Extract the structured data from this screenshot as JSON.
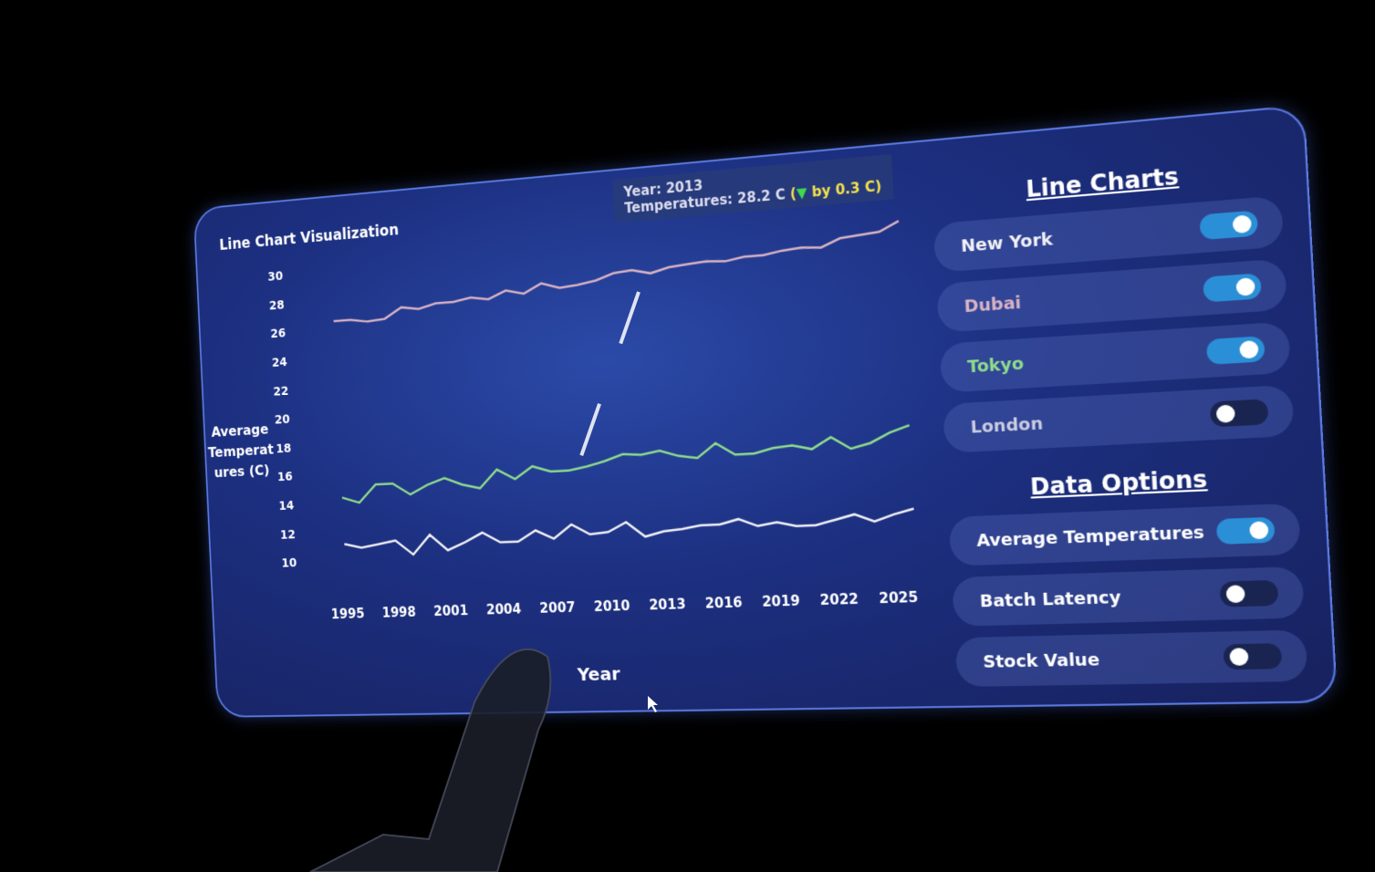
{
  "chart_data": {
    "type": "line",
    "title": "Line Chart Visualization",
    "x_label": "Year",
    "y_label": [
      "Average",
      "Temperat",
      "ures (C)"
    ],
    "x": [
      1995,
      1996,
      1997,
      1998,
      1999,
      2000,
      2001,
      2002,
      2003,
      2004,
      2005,
      2006,
      2007,
      2008,
      2009,
      2010,
      2011,
      2012,
      2013,
      2014,
      2015,
      2016,
      2017,
      2018,
      2019,
      2020,
      2021,
      2022,
      2023,
      2024,
      2025,
      2026
    ],
    "xlim": [
      1994,
      2027
    ],
    "xticks": [
      1995,
      1998,
      2001,
      2004,
      2007,
      2010,
      2013,
      2016,
      2019,
      2022,
      2025
    ],
    "ylim": [
      9,
      31
    ],
    "yticks": [
      10,
      12,
      14,
      16,
      18,
      20,
      22,
      24,
      26,
      28,
      30
    ],
    "grid": false,
    "series": [
      {
        "name": "New York",
        "color": "#f2f2f5",
        "on": true,
        "values": [
          11.2,
          10.9,
          11.1,
          11.3,
          10.3,
          11.6,
          10.5,
          11.0,
          11.6,
          10.9,
          10.9,
          11.6,
          11.0,
          11.9,
          11.2,
          11.3,
          11.9,
          10.9,
          11.2,
          11.3,
          11.5,
          11.5,
          11.8,
          11.3,
          11.5,
          11.2,
          11.2,
          11.5,
          11.8,
          11.3,
          11.7,
          12.0
        ]
      },
      {
        "name": "Dubai",
        "color": "#d9b3c4",
        "on": true,
        "values": [
          26.6,
          26.6,
          26.4,
          26.5,
          27.2,
          27.0,
          27.3,
          27.3,
          27.5,
          27.3,
          27.8,
          27.5,
          28.1,
          27.7,
          27.8,
          28.0,
          28.4,
          28.5,
          28.2,
          28.5,
          28.6,
          28.7,
          28.6,
          28.8,
          28.8,
          29.0,
          29.1,
          29.0,
          29.5,
          29.6,
          29.7,
          30.3
        ]
      },
      {
        "name": "Tokyo",
        "color": "#8fdc8c",
        "on": true,
        "values": [
          14.4,
          14.0,
          15.2,
          15.2,
          14.4,
          15.0,
          15.4,
          14.9,
          14.6,
          15.8,
          15.1,
          15.9,
          15.5,
          15.5,
          15.7,
          16.0,
          16.4,
          16.3,
          16.5,
          16.1,
          15.9,
          16.8,
          16.0,
          16.0,
          16.3,
          16.4,
          16.1,
          16.8,
          16.0,
          16.3,
          16.9,
          17.3
        ]
      }
    ],
    "tooltip": {
      "year_text": "Year: 2013",
      "temp_text": "Temperatures: 28.2 C",
      "open": "(",
      "arrow": "▼",
      "change_text": "by 0.3 C)"
    }
  },
  "line_charts": {
    "title": "Line Charts",
    "extra_toggles": [
      {
        "label": "London",
        "on": false,
        "color": "#c9cbe0"
      }
    ]
  },
  "data_options": {
    "title": "Data Options",
    "toggles": [
      {
        "label": "Average Temperatures",
        "on": true
      },
      {
        "label": "Batch Latency",
        "on": false
      },
      {
        "label": "Stock Value",
        "on": false
      }
    ]
  }
}
